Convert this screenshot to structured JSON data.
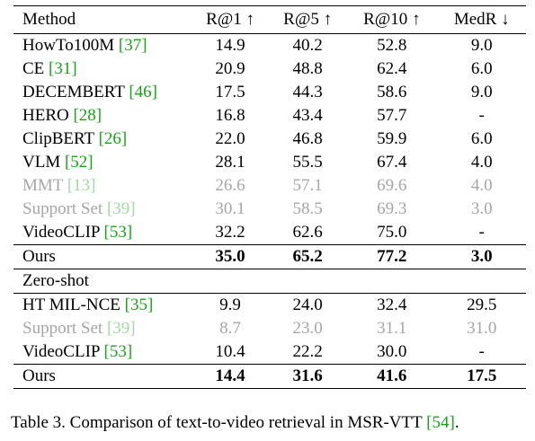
{
  "table": {
    "headers": [
      "Method",
      "R@1 ↑",
      "R@5 ↑",
      "R@10 ↑",
      "MedR ↓"
    ],
    "section1": [
      {
        "method": "HowTo100M ",
        "ref": "[37]",
        "r1": "14.9",
        "r5": "40.2",
        "r10": "52.8",
        "medr": "9.0",
        "style": "normal"
      },
      {
        "method": "CE ",
        "ref": "[31]",
        "r1": "20.9",
        "r5": "48.8",
        "r10": "62.4",
        "medr": "6.0",
        "style": "normal"
      },
      {
        "method": "DECEMBERT ",
        "ref": "[46]",
        "r1": "17.5",
        "r5": "44.3",
        "r10": "58.6",
        "medr": "9.0",
        "style": "normal"
      },
      {
        "method": "HERO ",
        "ref": "[28]",
        "r1": "16.8",
        "r5": "43.4",
        "r10": "57.7",
        "medr": "-",
        "style": "normal"
      },
      {
        "method": "ClipBERT ",
        "ref": "[26]",
        "r1": "22.0",
        "r5": "46.8",
        "r10": "59.9",
        "medr": "6.0",
        "style": "normal"
      },
      {
        "method": "VLM ",
        "ref": "[52]",
        "r1": "28.1",
        "r5": "55.5",
        "r10": "67.4",
        "medr": "4.0",
        "style": "normal"
      },
      {
        "method": "MMT ",
        "ref": "[13]",
        "r1": "26.6",
        "r5": "57.1",
        "r10": "69.6",
        "medr": "4.0",
        "style": "gray"
      },
      {
        "method": "Support Set ",
        "ref": "[39]",
        "r1": "30.1",
        "r5": "58.5",
        "r10": "69.3",
        "medr": "3.0",
        "style": "gray"
      },
      {
        "method": "VideoCLIP ",
        "ref": "[53]",
        "r1": "32.2",
        "r5": "62.6",
        "r10": "75.0",
        "medr": "-",
        "style": "normal"
      }
    ],
    "ours1": {
      "method": "Ours",
      "r1": "35.0",
      "r5": "65.2",
      "r10": "77.2",
      "medr": "3.0"
    },
    "zero_shot_label": "Zero-shot",
    "section2": [
      {
        "method": "HT MIL-NCE ",
        "ref": "[35]",
        "r1": "9.9",
        "r5": "24.0",
        "r10": "32.4",
        "medr": "29.5",
        "style": "normal"
      },
      {
        "method": "Support Set ",
        "ref": "[39]",
        "r1": "8.7",
        "r5": "23.0",
        "r10": "31.1",
        "medr": "31.0",
        "style": "gray"
      },
      {
        "method": "VideoCLIP ",
        "ref": "[53]",
        "r1": "10.4",
        "r5": "22.2",
        "r10": "30.0",
        "medr": "-",
        "style": "normal"
      }
    ],
    "ours2": {
      "method": "Ours",
      "r1": "14.4",
      "r5": "31.6",
      "r10": "41.6",
      "medr": "17.5"
    }
  },
  "caption": {
    "text": "Table 3. Comparison of text-to-video retrieval in MSR-VTT ",
    "ref": "[54]",
    "end": "."
  }
}
